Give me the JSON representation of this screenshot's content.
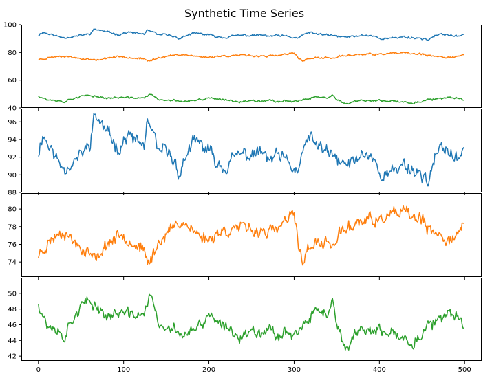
{
  "chart_data": {
    "title": "Synthetic Time Series",
    "type": "line",
    "grid": false,
    "n_points": 500,
    "colors": {
      "blue": "#1f77b4",
      "orange": "#ff7f0e",
      "green": "#2ca02c"
    },
    "x_ticks": [
      0,
      100,
      200,
      300,
      400,
      500
    ],
    "panels": [
      {
        "id": "combined",
        "xlim": [
          -20,
          520
        ],
        "ylim": [
          40,
          100
        ],
        "y_ticks": [
          40,
          60,
          80,
          100
        ],
        "series": [
          "blue",
          "orange",
          "green"
        ]
      },
      {
        "id": "blue",
        "xlim": [
          -20,
          520
        ],
        "ylim": [
          88,
          97.5
        ],
        "y_ticks": [
          88,
          90,
          92,
          94,
          96
        ],
        "series": [
          "blue"
        ]
      },
      {
        "id": "orange",
        "xlim": [
          -20,
          520
        ],
        "ylim": [
          72.3,
          81.8
        ],
        "y_ticks": [
          74,
          76,
          78,
          80
        ],
        "series": [
          "orange"
        ]
      },
      {
        "id": "green",
        "xlim": [
          -20,
          520
        ],
        "ylim": [
          41.4,
          52
        ],
        "y_ticks": [
          42,
          44,
          46,
          48,
          50
        ],
        "series": [
          "green"
        ]
      }
    ],
    "series": {
      "blue": {
        "anchors": [
          [
            0,
            92.5
          ],
          [
            5,
            94.6
          ],
          [
            12,
            93.4
          ],
          [
            20,
            92.0
          ],
          [
            30,
            90.8
          ],
          [
            40,
            91.3
          ],
          [
            50,
            92.3
          ],
          [
            60,
            93.4
          ],
          [
            66,
            96.8
          ],
          [
            75,
            95.6
          ],
          [
            85,
            94.2
          ],
          [
            95,
            93.0
          ],
          [
            105,
            94.5
          ],
          [
            115,
            93.8
          ],
          [
            124,
            93.3
          ],
          [
            128,
            95.9
          ],
          [
            135,
            94.4
          ],
          [
            140,
            92.6
          ],
          [
            150,
            92.8
          ],
          [
            160,
            91.4
          ],
          [
            166,
            90.0
          ],
          [
            175,
            92.7
          ],
          [
            185,
            93.8
          ],
          [
            200,
            92.7
          ],
          [
            210,
            91.3
          ],
          [
            220,
            90.8
          ],
          [
            230,
            92.0
          ],
          [
            240,
            92.4
          ],
          [
            250,
            92.1
          ],
          [
            260,
            92.7
          ],
          [
            270,
            91.6
          ],
          [
            280,
            92.1
          ],
          [
            290,
            91.6
          ],
          [
            300,
            90.6
          ],
          [
            306,
            90.3
          ],
          [
            312,
            93.6
          ],
          [
            320,
            94.0
          ],
          [
            330,
            93.2
          ],
          [
            340,
            92.4
          ],
          [
            350,
            91.7
          ],
          [
            360,
            91.1
          ],
          [
            370,
            91.5
          ],
          [
            380,
            92.4
          ],
          [
            392,
            92.1
          ],
          [
            400,
            90.2
          ],
          [
            410,
            90.0
          ],
          [
            420,
            90.6
          ],
          [
            428,
            91.3
          ],
          [
            440,
            90.5
          ],
          [
            450,
            90.0
          ],
          [
            458,
            89.4
          ],
          [
            464,
            91.5
          ],
          [
            470,
            92.7
          ],
          [
            480,
            93.0
          ],
          [
            490,
            91.5
          ],
          [
            495,
            91.8
          ],
          [
            500,
            94.2
          ]
        ],
        "noise": 0.65,
        "seed": 11
      },
      "orange": {
        "anchors": [
          [
            0,
            74.8
          ],
          [
            10,
            76.0
          ],
          [
            20,
            77.0
          ],
          [
            30,
            77.6
          ],
          [
            40,
            76.4
          ],
          [
            50,
            75.6
          ],
          [
            60,
            75.0
          ],
          [
            68,
            74.1
          ],
          [
            75,
            75.5
          ],
          [
            85,
            76.4
          ],
          [
            100,
            77.2
          ],
          [
            110,
            76.2
          ],
          [
            120,
            75.6
          ],
          [
            130,
            73.8
          ],
          [
            136,
            75.2
          ],
          [
            145,
            76.8
          ],
          [
            155,
            77.6
          ],
          [
            165,
            78.6
          ],
          [
            175,
            78.2
          ],
          [
            185,
            77.2
          ],
          [
            200,
            76.5
          ],
          [
            210,
            77.4
          ],
          [
            220,
            77.5
          ],
          [
            230,
            77.9
          ],
          [
            240,
            77.8
          ],
          [
            250,
            77.6
          ],
          [
            260,
            77.6
          ],
          [
            270,
            77.4
          ],
          [
            280,
            77.6
          ],
          [
            290,
            78.6
          ],
          [
            300,
            79.4
          ],
          [
            305,
            75.8
          ],
          [
            310,
            74.2
          ],
          [
            320,
            76.0
          ],
          [
            330,
            76.0
          ],
          [
            340,
            76.2
          ],
          [
            350,
            76.0
          ],
          [
            355,
            77.6
          ],
          [
            365,
            77.8
          ],
          [
            375,
            78.6
          ],
          [
            390,
            78.8
          ],
          [
            400,
            78.6
          ],
          [
            410,
            79.2
          ],
          [
            420,
            79.4
          ],
          [
            430,
            79.6
          ],
          [
            440,
            79.0
          ],
          [
            450,
            78.8
          ],
          [
            460,
            77.2
          ],
          [
            470,
            77.0
          ],
          [
            480,
            76.6
          ],
          [
            490,
            77.0
          ],
          [
            500,
            78.0
          ]
        ],
        "noise": 0.6,
        "seed": 23
      },
      "green": {
        "anchors": [
          [
            0,
            48.8
          ],
          [
            5,
            47.5
          ],
          [
            10,
            46.0
          ],
          [
            20,
            45.6
          ],
          [
            30,
            44.4
          ],
          [
            40,
            46.8
          ],
          [
            50,
            48.4
          ],
          [
            60,
            48.8
          ],
          [
            70,
            48.3
          ],
          [
            80,
            47.0
          ],
          [
            95,
            47.6
          ],
          [
            110,
            47.2
          ],
          [
            125,
            47.4
          ],
          [
            132,
            50.4
          ],
          [
            140,
            46.0
          ],
          [
            150,
            45.2
          ],
          [
            160,
            45.6
          ],
          [
            170,
            44.6
          ],
          [
            185,
            45.4
          ],
          [
            195,
            46.2
          ],
          [
            200,
            47.6
          ],
          [
            210,
            46.0
          ],
          [
            220,
            45.6
          ],
          [
            230,
            45.0
          ],
          [
            240,
            44.4
          ],
          [
            250,
            45.4
          ],
          [
            260,
            45.2
          ],
          [
            270,
            45.6
          ],
          [
            280,
            44.6
          ],
          [
            290,
            45.2
          ],
          [
            300,
            44.8
          ],
          [
            310,
            45.4
          ],
          [
            320,
            47.0
          ],
          [
            330,
            48.0
          ],
          [
            340,
            47.2
          ],
          [
            345,
            49.0
          ],
          [
            350,
            45.5
          ],
          [
            360,
            43.0
          ],
          [
            370,
            44.6
          ],
          [
            380,
            45.8
          ],
          [
            390,
            45.0
          ],
          [
            400,
            45.2
          ],
          [
            410,
            44.6
          ],
          [
            420,
            44.8
          ],
          [
            430,
            44.0
          ],
          [
            440,
            43.8
          ],
          [
            450,
            44.6
          ],
          [
            460,
            46.2
          ],
          [
            470,
            46.4
          ],
          [
            480,
            47.0
          ],
          [
            490,
            47.5
          ],
          [
            500,
            45.4
          ]
        ],
        "noise": 0.6,
        "seed": 37
      }
    }
  }
}
